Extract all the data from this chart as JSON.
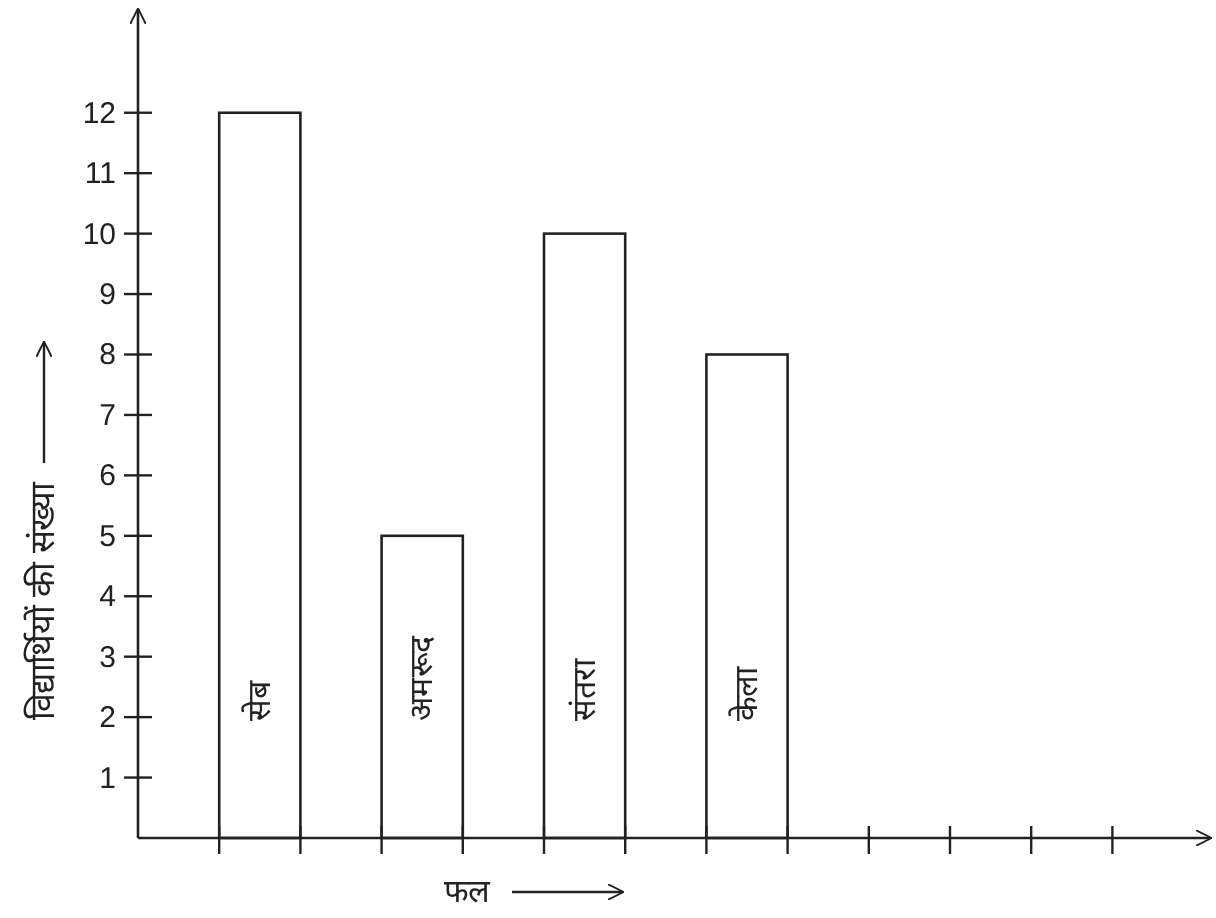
{
  "chart_data": {
    "type": "bar",
    "xlabel": "फल",
    "ylabel": "विद्यार्थियों की संख्या",
    "categories": [
      "सेब",
      "अमरूद",
      "संतरा",
      "केला"
    ],
    "values": [
      12,
      5,
      10,
      8
    ],
    "color": "#ffffff",
    "ylim": [
      0,
      13.7
    ],
    "yticks": [
      {
        "value": 0,
        "label": null
      },
      1,
      2,
      3,
      4,
      5,
      6,
      7,
      8,
      9,
      10,
      11,
      12
    ],
    "grid": false
  }
}
